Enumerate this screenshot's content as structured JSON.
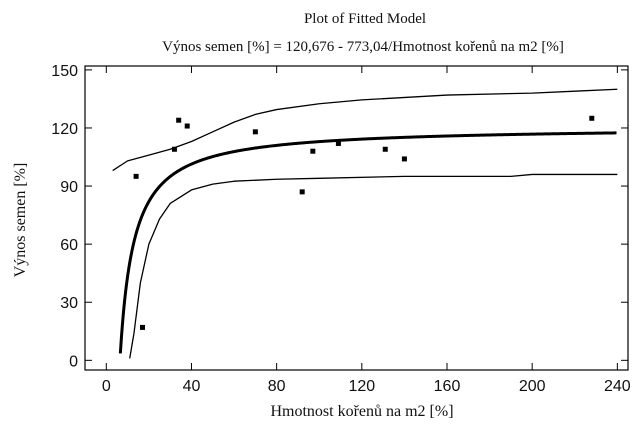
{
  "chart_data": {
    "type": "scatter",
    "title": "Plot of Fitted Model",
    "subtitle": "Výnos semen [%] = 120,676 - 773,04/Hmotnost kořenů na m2 [%]",
    "xlabel": "Hmotnost kořenů na m2 [%]",
    "ylabel": "Výnos semen [%]",
    "xlim": [
      -10,
      245
    ],
    "ylim": [
      -5,
      152
    ],
    "xticks": [
      0,
      40,
      80,
      120,
      160,
      200,
      240
    ],
    "yticks": [
      0,
      30,
      60,
      90,
      120,
      150
    ],
    "grid": false,
    "points": {
      "x": [
        14,
        17,
        32,
        34,
        38,
        70,
        92,
        97,
        109,
        131,
        140,
        228
      ],
      "y": [
        95,
        17,
        109,
        124,
        121,
        118,
        87,
        108,
        112,
        109,
        104,
        125
      ]
    },
    "fitted_model": {
      "name": "fitted",
      "intercept": 120.676,
      "slope": -773.04,
      "x_start": 6.6,
      "x_end": 240
    },
    "lower_band": {
      "x": [
        11,
        13,
        16,
        20,
        25,
        30,
        40,
        50,
        60,
        80,
        100,
        140,
        190,
        200,
        240
      ],
      "y": [
        1,
        14,
        40,
        60,
        73,
        81,
        88,
        91,
        92.5,
        93.5,
        94,
        95,
        95,
        96,
        96
      ]
    },
    "upper_band": {
      "x": [
        3,
        10,
        20,
        30,
        40,
        50,
        60,
        70,
        80,
        100,
        120,
        160,
        200,
        220,
        240
      ],
      "y": [
        98,
        103,
        106,
        109,
        113,
        118,
        123,
        127,
        129.5,
        132.5,
        134.5,
        137,
        138,
        139,
        140
      ]
    },
    "colors": {
      "line": "#000000",
      "points": "#000000"
    }
  }
}
